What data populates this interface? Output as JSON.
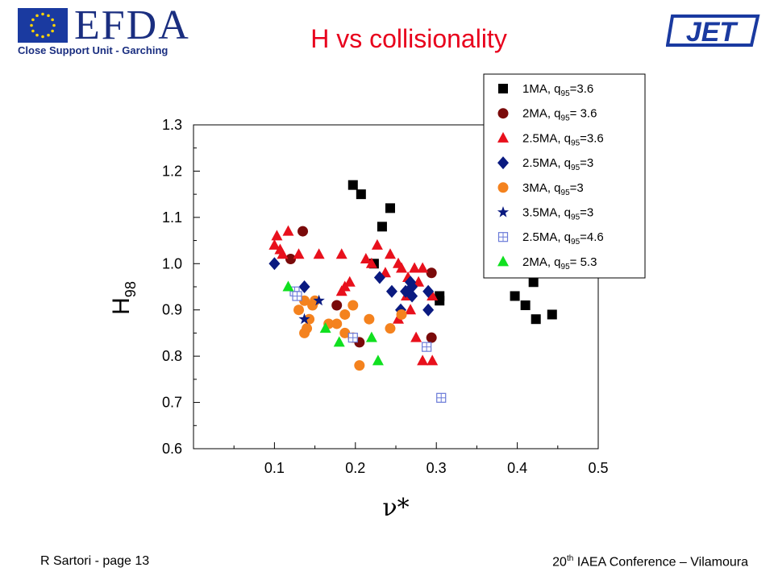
{
  "header": {
    "org_name": "EFDA",
    "org_subtitle": "Close Support Unit - Garching",
    "right_logo": "JET",
    "title": "H vs collisionality"
  },
  "footer": {
    "left": "R Sartori  - page 13",
    "right_prefix": "20",
    "right_sup": "th",
    "right_suffix": " IAEA Conference – Vilamoura"
  },
  "chart_data": {
    "type": "scatter",
    "title": "H vs collisionality",
    "xlabel": "ν*",
    "ylabel_main": "H",
    "ylabel_sub": "98",
    "xlim": [
      0.0,
      0.5
    ],
    "ylim": [
      0.6,
      1.3
    ],
    "x_ticks": [
      "0.1",
      "0.2",
      "0.3",
      "0.4",
      "0.5"
    ],
    "y_ticks": [
      "0.6",
      "0.7",
      "0.8",
      "0.9",
      "1.0",
      "1.1",
      "1.2",
      "1.3"
    ],
    "legend_position": "top-right",
    "series": [
      {
        "name_pre": "1MA,   q",
        "name_sub": "95",
        "name_post": "=3.6",
        "marker": "square",
        "color": "#000000",
        "points": [
          [
            0.197,
            1.17
          ],
          [
            0.207,
            1.15
          ],
          [
            0.243,
            1.12
          ],
          [
            0.233,
            1.08
          ],
          [
            0.223,
            1.0
          ],
          [
            0.304,
            0.93
          ],
          [
            0.304,
            0.92
          ],
          [
            0.397,
            0.93
          ],
          [
            0.41,
            0.91
          ],
          [
            0.42,
            0.96
          ],
          [
            0.423,
            0.88
          ],
          [
            0.443,
            0.89
          ]
        ]
      },
      {
        "name_pre": "2MA,   q",
        "name_sub": "95",
        "name_post": "= 3.6",
        "marker": "circle",
        "color": "#7a0a0a",
        "points": [
          [
            0.12,
            1.01
          ],
          [
            0.135,
            1.07
          ],
          [
            0.177,
            0.91
          ],
          [
            0.205,
            0.83
          ],
          [
            0.294,
            0.98
          ],
          [
            0.294,
            0.84
          ]
        ]
      },
      {
        "name_pre": "2.5MA, q",
        "name_sub": "95",
        "name_post": "=3.6",
        "marker": "triangle",
        "color": "#e8101c",
        "points": [
          [
            0.1,
            1.04
          ],
          [
            0.103,
            1.06
          ],
          [
            0.107,
            1.03
          ],
          [
            0.11,
            1.02
          ],
          [
            0.117,
            1.07
          ],
          [
            0.13,
            1.02
          ],
          [
            0.155,
            1.02
          ],
          [
            0.183,
            0.94
          ],
          [
            0.187,
            0.95
          ],
          [
            0.193,
            0.96
          ],
          [
            0.183,
            1.02
          ],
          [
            0.213,
            1.01
          ],
          [
            0.22,
            1.0
          ],
          [
            0.227,
            1.04
          ],
          [
            0.237,
            0.98
          ],
          [
            0.243,
            1.02
          ],
          [
            0.253,
            1.0
          ],
          [
            0.257,
            0.99
          ],
          [
            0.265,
            0.97
          ],
          [
            0.273,
            0.99
          ],
          [
            0.278,
            0.96
          ],
          [
            0.283,
            0.99
          ],
          [
            0.268,
            0.9
          ],
          [
            0.283,
            0.79
          ],
          [
            0.295,
            0.79
          ],
          [
            0.295,
            0.93
          ],
          [
            0.253,
            0.88
          ],
          [
            0.263,
            0.93
          ],
          [
            0.275,
            0.84
          ]
        ]
      },
      {
        "name_pre": "2.5MA,  q",
        "name_sub": "95",
        "name_post": "=3",
        "marker": "diamond",
        "color": "#0a1a80",
        "points": [
          [
            0.1,
            1.0
          ],
          [
            0.137,
            0.95
          ],
          [
            0.23,
            0.97
          ],
          [
            0.245,
            0.94
          ],
          [
            0.262,
            0.94
          ],
          [
            0.268,
            0.96
          ],
          [
            0.27,
            0.95
          ],
          [
            0.27,
            0.93
          ],
          [
            0.256,
            0.9
          ],
          [
            0.29,
            0.94
          ],
          [
            0.29,
            0.9
          ]
        ]
      },
      {
        "name_pre": "3MA,     q",
        "name_sub": "95",
        "name_post": "=3",
        "marker": "circle",
        "color": "#f4821e",
        "points": [
          [
            0.13,
            0.9
          ],
          [
            0.137,
            0.92
          ],
          [
            0.14,
            0.86
          ],
          [
            0.137,
            0.85
          ],
          [
            0.143,
            0.88
          ],
          [
            0.147,
            0.91
          ],
          [
            0.15,
            0.92
          ],
          [
            0.167,
            0.87
          ],
          [
            0.177,
            0.87
          ],
          [
            0.187,
            0.85
          ],
          [
            0.187,
            0.89
          ],
          [
            0.197,
            0.91
          ],
          [
            0.197,
            0.84
          ],
          [
            0.205,
            0.78
          ],
          [
            0.217,
            0.88
          ],
          [
            0.243,
            0.86
          ],
          [
            0.257,
            0.89
          ]
        ]
      },
      {
        "name_pre": "3.5MA,  q",
        "name_sub": "95",
        "name_post": "=3",
        "marker": "star",
        "color": "#0a1a80",
        "points": [
          [
            0.155,
            0.92
          ],
          [
            0.137,
            0.88
          ]
        ]
      },
      {
        "name_pre": "2.5MA,  q",
        "name_sub": "95",
        "name_post": "=4.6",
        "marker": "hashbox",
        "color": "#6a7ad8",
        "points": [
          [
            0.125,
            0.94
          ],
          [
            0.128,
            0.93
          ],
          [
            0.197,
            0.84
          ],
          [
            0.288,
            0.82
          ],
          [
            0.306,
            0.71
          ]
        ]
      },
      {
        "name_pre": "2MA,     q",
        "name_sub": "95",
        "name_post": "= 5.3",
        "marker": "triangle",
        "color": "#10e020",
        "points": [
          [
            0.117,
            0.95
          ],
          [
            0.163,
            0.86
          ],
          [
            0.18,
            0.83
          ],
          [
            0.22,
            0.84
          ],
          [
            0.228,
            0.79
          ]
        ]
      }
    ]
  },
  "colors": {
    "title": "#e8001c",
    "efda_blue": "#1a2e80"
  }
}
